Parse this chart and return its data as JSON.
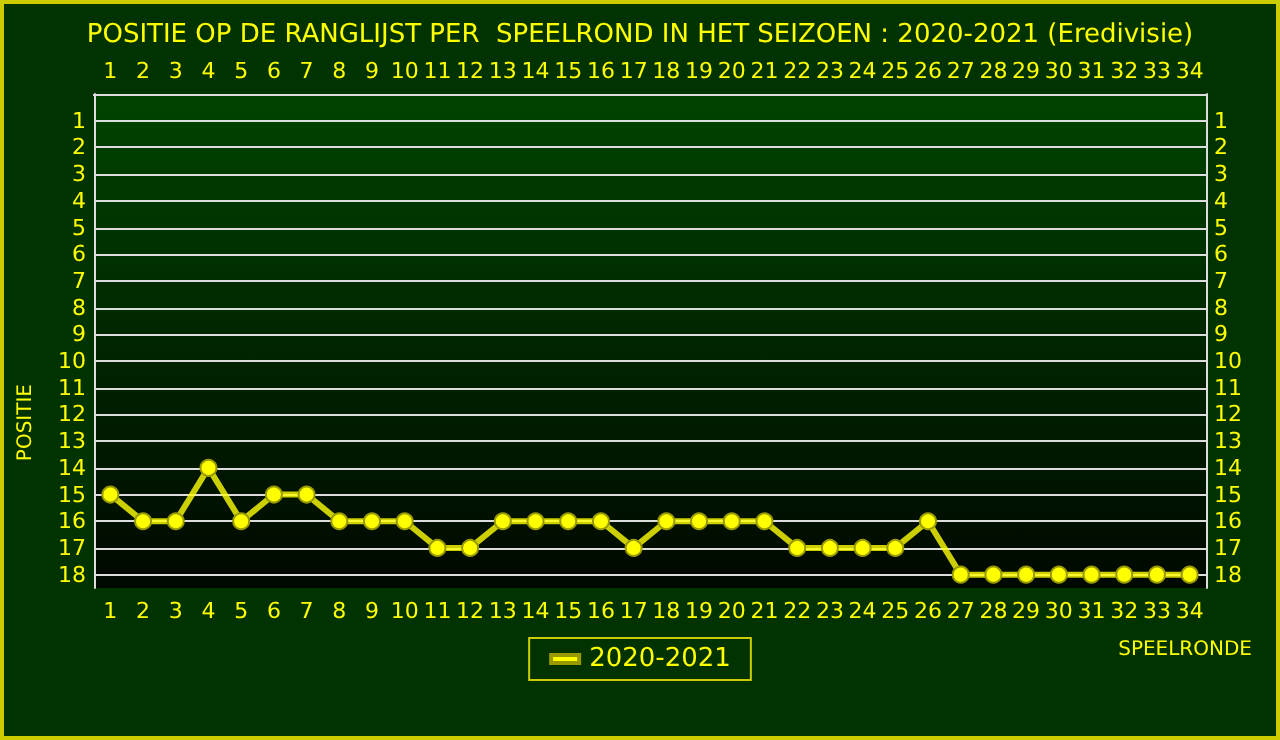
{
  "chart_data": {
    "type": "line",
    "title": "POSITIE OP DE RANGLIJST PER  SPEELROND IN HET SEIZOEN : 2020-2021 (Eredivisie)",
    "xlabel": "SPEELRONDE",
    "ylabel": "POSITIE",
    "x": [
      1,
      2,
      3,
      4,
      5,
      6,
      7,
      8,
      9,
      10,
      11,
      12,
      13,
      14,
      15,
      16,
      17,
      18,
      19,
      20,
      21,
      22,
      23,
      24,
      25,
      26,
      27,
      28,
      29,
      30,
      31,
      32,
      33,
      34
    ],
    "series": [
      {
        "name": "2020-2021",
        "color": "#ffff00",
        "values": [
          15,
          16,
          16,
          14,
          16,
          15,
          15,
          16,
          16,
          16,
          17,
          17,
          16,
          16,
          16,
          16,
          17,
          16,
          16,
          16,
          16,
          17,
          17,
          17,
          17,
          16,
          18,
          18,
          18,
          18,
          18,
          18,
          18,
          18
        ]
      }
    ],
    "xlim": [
      0.5,
      34.5
    ],
    "xticks": [
      1,
      2,
      3,
      4,
      5,
      6,
      7,
      8,
      9,
      10,
      11,
      12,
      13,
      14,
      15,
      16,
      17,
      18,
      19,
      20,
      21,
      22,
      23,
      24,
      25,
      26,
      27,
      28,
      29,
      30,
      31,
      32,
      33,
      34
    ],
    "x2lim": [
      0.5,
      34.5
    ],
    "x2ticks": [
      1,
      2,
      3,
      4,
      5,
      6,
      7,
      8,
      9,
      10,
      11,
      12,
      13,
      14,
      15,
      16,
      17,
      18,
      19,
      20,
      21,
      22,
      23,
      24,
      25,
      26,
      27,
      28,
      29,
      30,
      31,
      32,
      33,
      34
    ],
    "ylim": [
      18.5,
      0
    ],
    "yticks": [
      1,
      2,
      3,
      4,
      5,
      6,
      7,
      8,
      9,
      10,
      11,
      12,
      13,
      14,
      15,
      16,
      17,
      18
    ],
    "y2lim": [
      18.5,
      0
    ],
    "y2ticks": [
      1,
      2,
      3,
      4,
      5,
      6,
      7,
      8,
      9,
      10,
      11,
      12,
      13,
      14,
      15,
      16,
      17,
      18
    ],
    "grid": "y",
    "legend": "bottom",
    "marker": "circle",
    "line_style": "solid"
  }
}
